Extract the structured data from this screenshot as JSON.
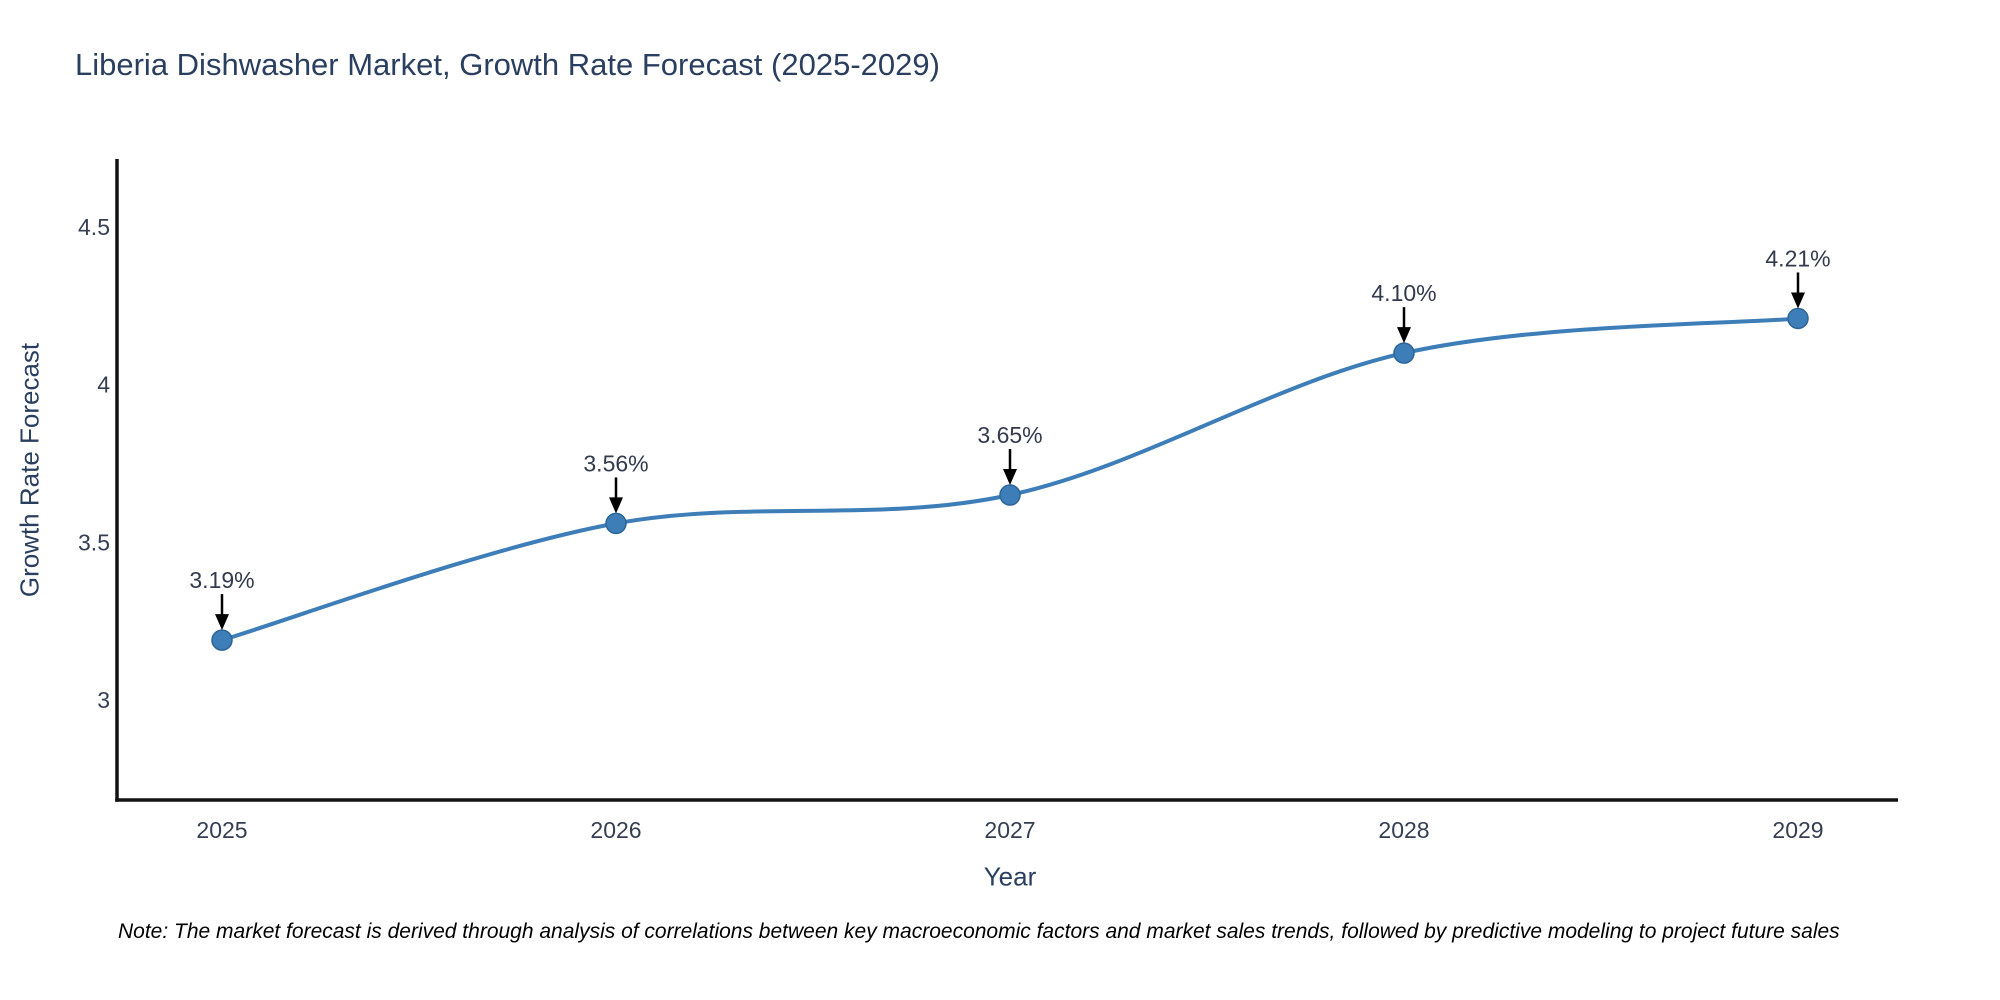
{
  "chart_data": {
    "type": "line",
    "title": "Liberia Dishwasher Market, Growth Rate Forecast (2025-2029)",
    "xlabel": "Year",
    "ylabel": "Growth Rate Forecast",
    "x": [
      2025,
      2026,
      2027,
      2028,
      2029
    ],
    "xtick_labels": [
      "2025",
      "2026",
      "2027",
      "2028",
      "2029"
    ],
    "series": [
      {
        "name": "Growth Rate Forecast",
        "values": [
          3.19,
          3.56,
          3.65,
          4.1,
          4.21
        ]
      }
    ],
    "point_labels": [
      "3.19%",
      "3.56%",
      "3.65%",
      "4.10%",
      "4.21%"
    ],
    "yticks": [
      3,
      3.5,
      4,
      4.5
    ],
    "ytick_labels": [
      "3",
      "3.5",
      "4",
      "4.5"
    ],
    "ylim": [
      2.68,
      4.72
    ],
    "grid": false,
    "legend": false,
    "line_shape": "spline",
    "annotation_style": "black-down-arrow",
    "colors": {
      "line": "#3e7eb8",
      "marker_fill": "#3e7eb8",
      "marker_edge": "#2c6597",
      "axis": "#111111",
      "tick_text": "#353f54",
      "annotation_text": "#333a4d",
      "arrow": "#000000",
      "title_text": "#2a3f5f"
    }
  },
  "footer": {
    "note": "Note: The market forecast is derived through analysis of correlations between key macroeconomic factors and market sales trends, followed by predictive modeling to project future sales"
  }
}
